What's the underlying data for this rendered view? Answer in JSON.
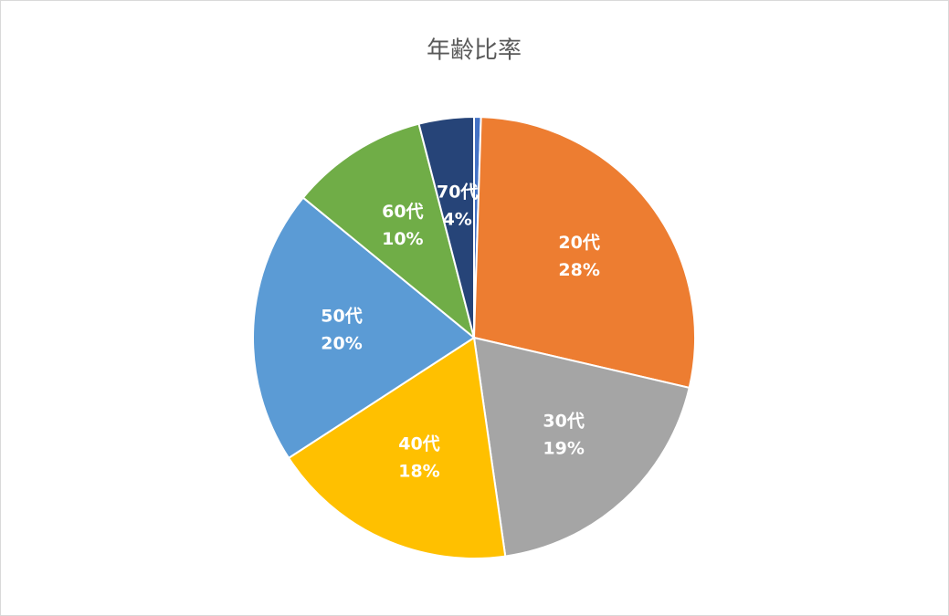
{
  "chart_data": {
    "type": "pie",
    "title": "年齢比率",
    "categories": [
      null,
      "20代",
      "30代",
      "40代",
      "50代",
      "60代",
      "70代"
    ],
    "values": [
      0.5,
      28,
      19,
      18,
      20,
      10,
      4
    ],
    "value_labels": [
      null,
      "28%",
      "19%",
      "18%",
      "20%",
      "10%",
      "4%"
    ],
    "colors": [
      "#4472c4",
      "#ed7d31",
      "#a5a5a5",
      "#ffc000",
      "#5b9bd5",
      "#70ad47",
      "#264478"
    ]
  }
}
